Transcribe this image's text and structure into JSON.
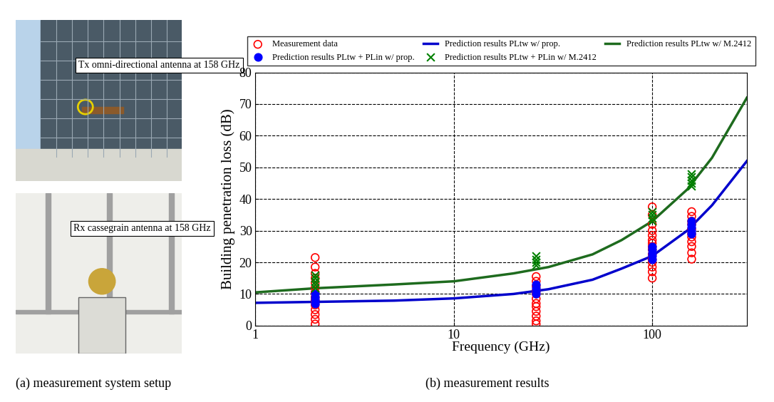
{
  "figure": {
    "photo_labels": [
      "Tx omni-directional antenna at 158 GHz",
      "Rx cassegrain antenna at 158 GHz"
    ],
    "captions": [
      "(a) measurement system setup",
      "(b) measurement results"
    ]
  },
  "chart_data": {
    "type": "scatter",
    "x_label": "Frequency (GHz)",
    "y_label": "Building penetration loss (dB)",
    "log": "x",
    "xlim": [
      1,
      300
    ],
    "xticks": [
      1,
      10,
      100
    ],
    "ylim": [
      0,
      80
    ],
    "yticks": [
      0,
      10,
      20,
      30,
      40,
      50,
      60,
      70,
      80
    ],
    "grid": true,
    "legend": "lower center",
    "series": [
      {
        "name": "Measurement data",
        "type": "scatter",
        "marker": "open_circle",
        "color": "#ff0000",
        "x": [
          2,
          2,
          2,
          2,
          2,
          2,
          2,
          2,
          2,
          2,
          2,
          2,
          2,
          2,
          26,
          26,
          26,
          26,
          26,
          26,
          26,
          26,
          26,
          26,
          26,
          26,
          100,
          100,
          100,
          100,
          100,
          100,
          100,
          100,
          100,
          100,
          100,
          100,
          100,
          100,
          100,
          158,
          158,
          158,
          158,
          158,
          158,
          158,
          158,
          158,
          158,
          158
        ],
        "values": [
          0.5,
          2,
          3.5,
          5,
          6.5,
          8,
          9,
          10.5,
          12,
          13.5,
          15,
          16.5,
          18.5,
          21.5,
          0.5,
          1.5,
          3,
          4.5,
          6,
          7,
          8.5,
          10,
          11,
          12.5,
          14,
          15.5,
          15,
          17,
          18.5,
          20,
          21,
          22.5,
          24,
          25,
          26,
          27,
          28.5,
          30,
          32,
          35,
          37.5,
          21,
          23,
          25,
          26.5,
          28,
          29,
          30.5,
          32,
          33,
          34.5,
          36
        ]
      },
      {
        "name": "Prediction results PLtw + PLin w/ prop.",
        "type": "scatter",
        "marker": "dot",
        "color": "#0000ff",
        "x": [
          2,
          2,
          2,
          2,
          26,
          26,
          26,
          26,
          100,
          100,
          100,
          100,
          100,
          158,
          158,
          158,
          158,
          158
        ],
        "values": [
          7,
          8,
          9,
          10,
          10,
          11,
          12,
          13,
          21,
          22,
          23,
          24,
          25,
          29,
          30,
          31,
          32,
          33
        ]
      },
      {
        "name": "Prediction results PLtw w/ prop.",
        "type": "line",
        "line_style": "solid",
        "color": "#0000cc",
        "x": [
          1,
          2,
          5,
          10,
          20,
          30,
          50,
          70,
          100,
          150,
          200,
          300
        ],
        "values": [
          7.2,
          7.5,
          7.9,
          8.6,
          10,
          11.5,
          14.5,
          18,
          22,
          30,
          38,
          52
        ]
      },
      {
        "name": "Prediction results PLtw + PLin w/ M.2412",
        "type": "scatter",
        "marker": "x",
        "color": "#008000",
        "x": [
          2,
          2,
          2,
          2,
          2,
          26,
          26,
          26,
          26,
          100,
          100,
          100,
          100,
          158,
          158,
          158,
          158,
          158
        ],
        "values": [
          12,
          13,
          14,
          15,
          16,
          19,
          20,
          21,
          22,
          33,
          34,
          35,
          36,
          44,
          45,
          46,
          47,
          48
        ]
      },
      {
        "name": "Prediction results PLtw w/ M.2412",
        "type": "line",
        "line_style": "solid",
        "color": "#1e6b1e",
        "x": [
          1,
          2,
          5,
          10,
          20,
          30,
          50,
          70,
          100,
          150,
          200,
          300
        ],
        "values": [
          10.5,
          11.8,
          13,
          14,
          16.5,
          18.5,
          22.5,
          27,
          33,
          43,
          53,
          72
        ]
      }
    ]
  }
}
